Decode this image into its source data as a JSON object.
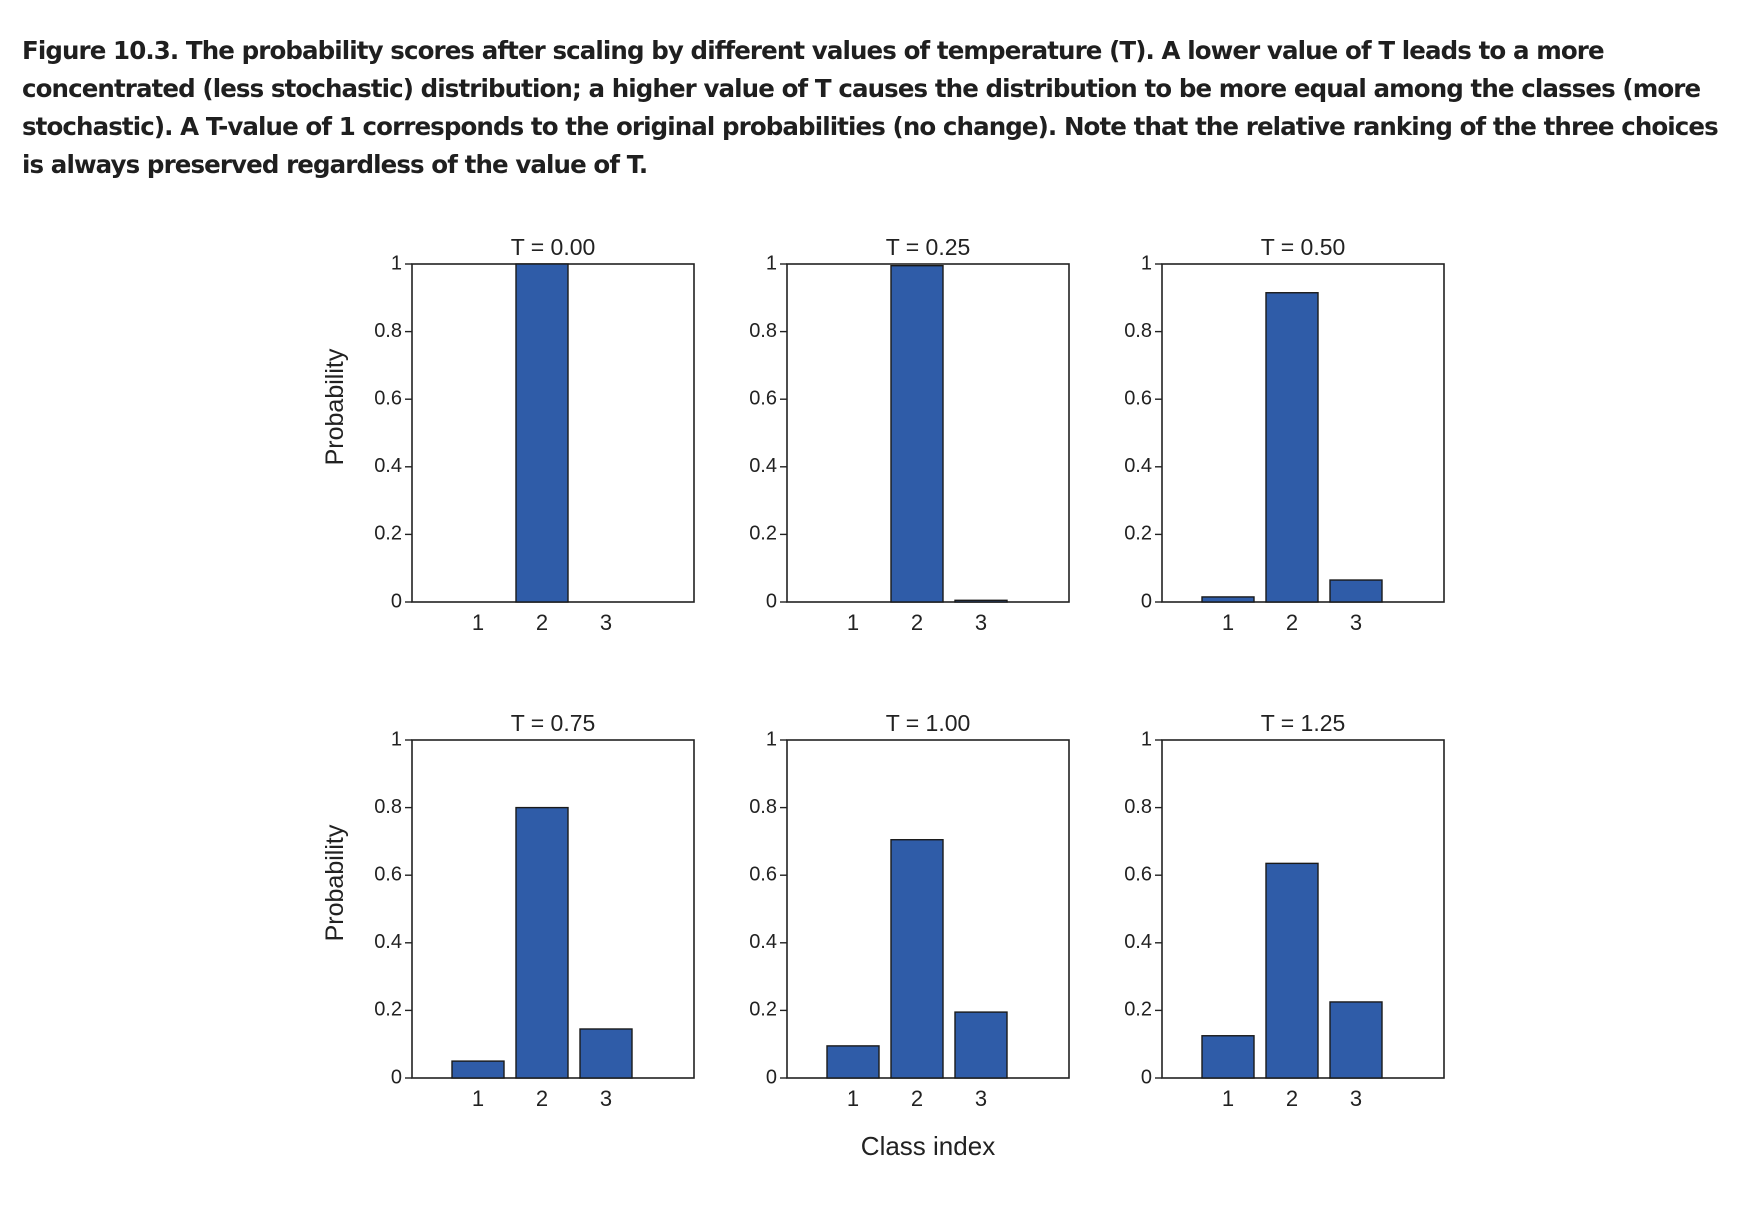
{
  "caption": "Figure 10.3. The probability scores after scaling by different values of temperature (T). A lower value of T leads to a more concentrated (less stochastic) distribution; a higher value of T causes the distribution to be more equal among the classes (more stochastic). A T-value of 1 corresponds to the original probabilities (no change). Note that the relative ranking of the three choices is always preserved regardless of the value of T.",
  "colors": {
    "bar": "#2f5ca8",
    "axis": "#222222",
    "background": "#ffffff"
  },
  "chart_data": [
    {
      "type": "bar",
      "title": "T = 0.00",
      "categories": [
        "1",
        "2",
        "3"
      ],
      "values": [
        0,
        1.0,
        0
      ],
      "ylim": [
        0,
        1
      ],
      "yticks": [
        "0",
        "0.2",
        "0.4",
        "0.6",
        "0.8",
        "1"
      ],
      "ylabel": "Probability",
      "xlabel": "",
      "grid": false
    },
    {
      "type": "bar",
      "title": "T = 0.25",
      "categories": [
        "1",
        "2",
        "3"
      ],
      "values": [
        0,
        0.995,
        0.005
      ],
      "ylim": [
        0,
        1
      ],
      "yticks": [
        "0",
        "0.2",
        "0.4",
        "0.6",
        "0.8",
        "1"
      ],
      "ylabel": "",
      "xlabel": "",
      "grid": false
    },
    {
      "type": "bar",
      "title": "T = 0.50",
      "categories": [
        "1",
        "2",
        "3"
      ],
      "values": [
        0.015,
        0.915,
        0.065
      ],
      "ylim": [
        0,
        1
      ],
      "yticks": [
        "0",
        "0.2",
        "0.4",
        "0.6",
        "0.8",
        "1"
      ],
      "ylabel": "",
      "xlabel": "",
      "grid": false
    },
    {
      "type": "bar",
      "title": "T = 0.75",
      "categories": [
        "1",
        "2",
        "3"
      ],
      "values": [
        0.05,
        0.8,
        0.145
      ],
      "ylim": [
        0,
        1
      ],
      "yticks": [
        "0",
        "0.2",
        "0.4",
        "0.6",
        "0.8",
        "1"
      ],
      "ylabel": "Probability",
      "xlabel": "",
      "grid": false
    },
    {
      "type": "bar",
      "title": "T = 1.00",
      "categories": [
        "1",
        "2",
        "3"
      ],
      "values": [
        0.095,
        0.705,
        0.195
      ],
      "ylim": [
        0,
        1
      ],
      "yticks": [
        "0",
        "0.2",
        "0.4",
        "0.6",
        "0.8",
        "1"
      ],
      "ylabel": "",
      "xlabel": "Class index",
      "grid": false
    },
    {
      "type": "bar",
      "title": "T = 1.25",
      "categories": [
        "1",
        "2",
        "3"
      ],
      "values": [
        0.125,
        0.635,
        0.225
      ],
      "ylim": [
        0,
        1
      ],
      "yticks": [
        "0",
        "0.2",
        "0.4",
        "0.6",
        "0.8",
        "1"
      ],
      "ylabel": "",
      "xlabel": "",
      "grid": false
    }
  ]
}
